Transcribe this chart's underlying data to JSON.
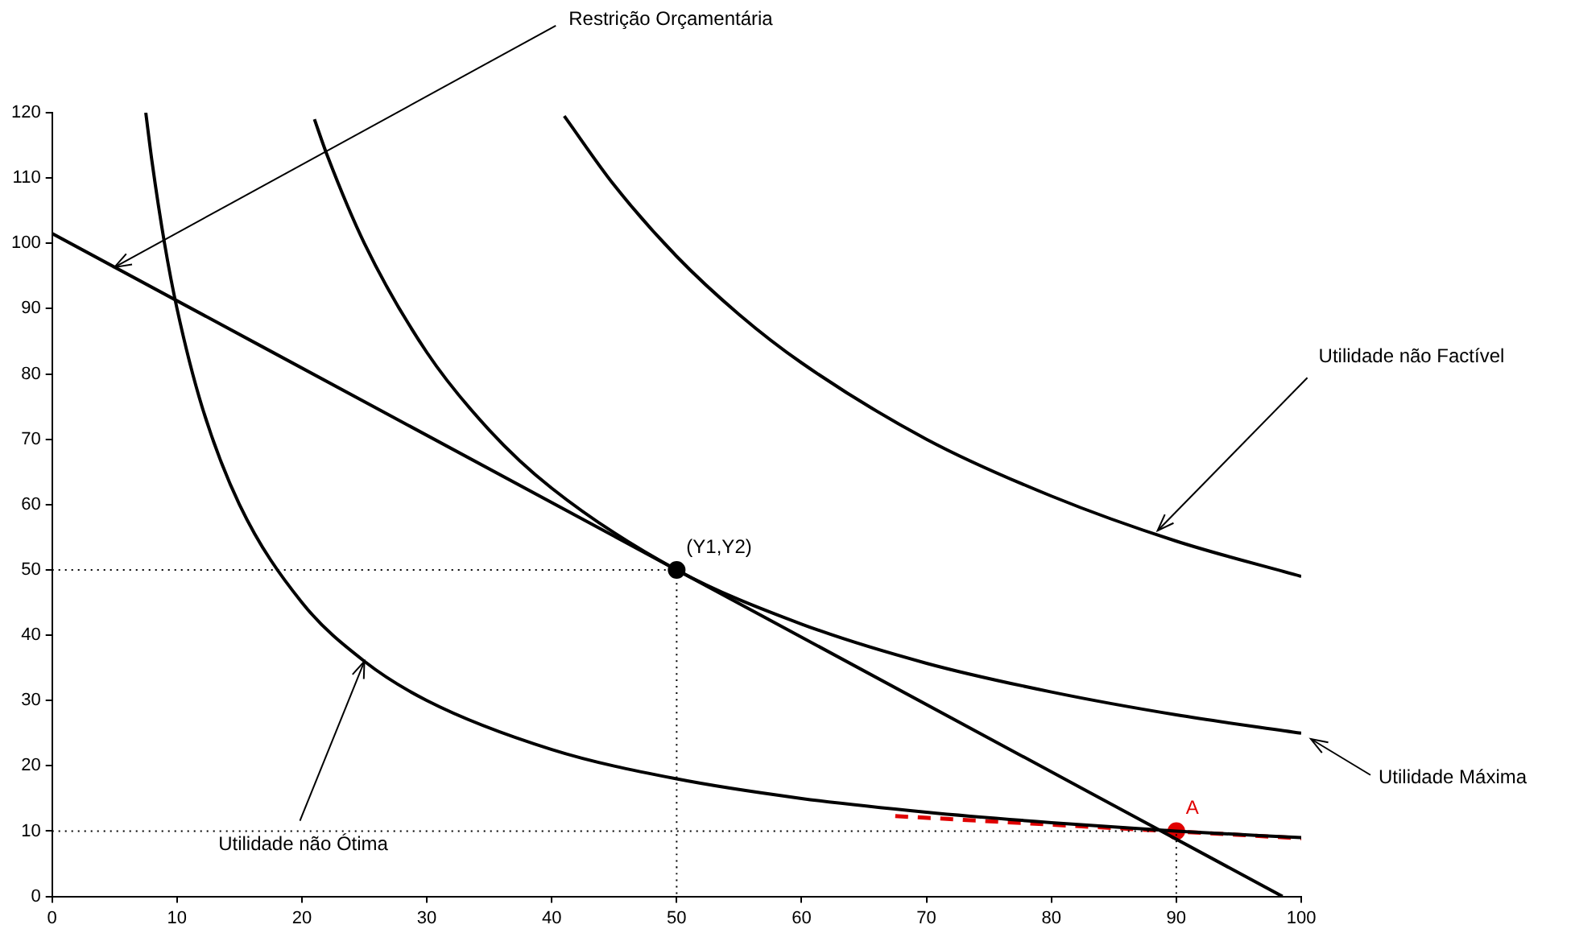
{
  "chart_data": {
    "type": "line",
    "xlim": [
      0,
      100
    ],
    "ylim": [
      0,
      120
    ],
    "xticks": [
      0,
      10,
      20,
      30,
      40,
      50,
      60,
      70,
      80,
      90,
      100
    ],
    "yticks": [
      0,
      10,
      20,
      30,
      40,
      50,
      60,
      70,
      80,
      90,
      100,
      110,
      120
    ],
    "grid": false,
    "legend": false,
    "marker": "none",
    "series": [
      {
        "color": "#000000",
        "line_style": "solid",
        "x": [
          0,
          50,
          98.5
        ],
        "values": [
          101.5,
          50,
          0
        ]
      },
      {
        "color": "#000000",
        "line_style": "solid",
        "x": [
          7.5,
          8,
          9,
          10,
          12,
          15,
          20,
          25,
          30,
          40,
          50,
          60,
          70,
          80,
          90,
          100
        ],
        "values": [
          120,
          112.5,
          100,
          90,
          75,
          60,
          45,
          36,
          30,
          22.5,
          18,
          15,
          12.9,
          11.3,
          10,
          9
        ]
      },
      {
        "color": "#000000",
        "line_style": "solid",
        "x": [
          21,
          22,
          25,
          30,
          35,
          40,
          50,
          60,
          70,
          80,
          90,
          100
        ],
        "values": [
          119,
          113.6,
          100,
          83.3,
          71.4,
          62.5,
          50,
          41.7,
          35.7,
          31.3,
          27.8,
          25
        ]
      },
      {
        "color": "#000000",
        "line_style": "solid",
        "x": [
          41,
          45,
          50,
          55,
          60,
          70,
          80,
          90,
          100
        ],
        "values": [
          119.5,
          108.9,
          98,
          89.1,
          81.7,
          70,
          61.3,
          54.4,
          49
        ]
      },
      {
        "color": "#000000",
        "line_style": "dotted",
        "x": [
          0,
          50,
          50
        ],
        "values": [
          50,
          50,
          0
        ]
      },
      {
        "color": "#000000",
        "line_style": "dotted",
        "x": [
          0,
          90,
          90
        ],
        "values": [
          10,
          10,
          0
        ]
      },
      {
        "color": "#e00000",
        "line_style": "dashed",
        "x": [
          67.5,
          100
        ],
        "values": [
          12.3,
          8.9
        ]
      },
      {
        "type": "scatter",
        "color": "#000000",
        "marker": "circle",
        "x": [
          50
        ],
        "values": [
          50
        ],
        "value_labels": [
          "(Y1,Y2)"
        ]
      },
      {
        "type": "scatter",
        "color": "#e00000",
        "marker": "circle",
        "x": [
          90
        ],
        "values": [
          10
        ],
        "value_labels": [
          "A"
        ]
      }
    ],
    "annotations": [
      {
        "text": "Restrição Orçamentária",
        "x": 5,
        "y": 96.35
      },
      {
        "text": "Utilidade não Factível",
        "x": 88.5,
        "y": 56
      },
      {
        "text": "Utilidade Máxima",
        "x": 100,
        "y": 25
      },
      {
        "text": "Utilidade não Ótima",
        "x": 25,
        "y": 36
      }
    ]
  }
}
